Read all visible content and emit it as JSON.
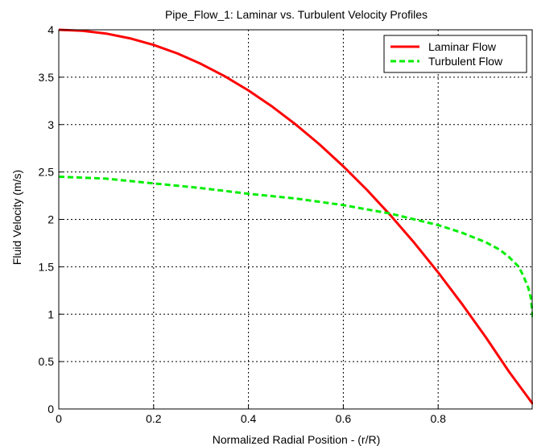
{
  "chart_data": {
    "type": "line",
    "title": "Pipe_Flow_1:  Laminar vs. Turbulent Velocity Profiles",
    "xlabel": "Normalized Radial Position - (r/R)",
    "ylabel": "Fluid Velocity (m/s)",
    "xlim": [
      0,
      1
    ],
    "ylim": [
      0,
      4
    ],
    "grid": true,
    "legend_position": "top-right",
    "x_ticks": [
      0,
      0.2,
      0.4,
      0.6,
      0.8
    ],
    "x_tick_labels": [
      "0",
      "0.2",
      "0.4",
      "0.6",
      "0.8"
    ],
    "y_ticks": [
      0,
      0.5,
      1,
      1.5,
      2,
      2.5,
      3,
      3.5,
      4
    ],
    "y_tick_labels": [
      "0",
      "0.5",
      "1",
      "1.5",
      "2",
      "2.5",
      "3",
      "3.5",
      "4"
    ],
    "series": [
      {
        "name": "Laminar Flow",
        "color": "#ff0000",
        "style": "solid",
        "x": [
          0,
          0.05,
          0.1,
          0.15,
          0.2,
          0.25,
          0.3,
          0.35,
          0.4,
          0.45,
          0.5,
          0.55,
          0.6,
          0.65,
          0.7,
          0.75,
          0.8,
          0.85,
          0.9,
          0.95,
          1.0
        ],
        "y": [
          4.0,
          3.99,
          3.96,
          3.91,
          3.84,
          3.75,
          3.64,
          3.51,
          3.36,
          3.19,
          3.0,
          2.79,
          2.56,
          2.31,
          2.04,
          1.75,
          1.44,
          1.11,
          0.76,
          0.39,
          0.05
        ]
      },
      {
        "name": "Turbulent Flow",
        "color": "#00ee00",
        "style": "dashed",
        "x": [
          0,
          0.1,
          0.2,
          0.3,
          0.4,
          0.5,
          0.6,
          0.7,
          0.8,
          0.85,
          0.9,
          0.93,
          0.95,
          0.97,
          0.98,
          0.99,
          0.995,
          1.0
        ],
        "y": [
          2.45,
          2.43,
          2.38,
          2.33,
          2.27,
          2.22,
          2.15,
          2.06,
          1.94,
          1.86,
          1.76,
          1.68,
          1.6,
          1.5,
          1.4,
          1.28,
          1.18,
          0.95
        ]
      }
    ]
  }
}
